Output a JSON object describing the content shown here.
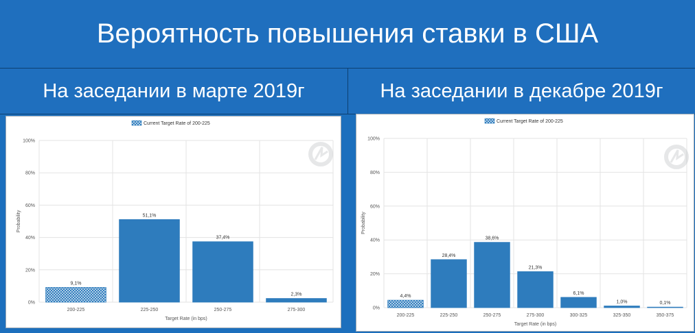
{
  "header": {
    "title": "Вероятность повышения ставки в США",
    "left_subtitle": "На заседании в марте 2019г",
    "right_subtitle": "На заседании в декабре 2019г"
  },
  "colors": {
    "background": "#1f6fbe",
    "bar": "#2e7cbd",
    "current_bar_pattern": "#2e7cbd",
    "grid": "#e3e3e3",
    "axis_text": "#555555"
  },
  "chart_data": [
    {
      "type": "bar",
      "legend": "Current Target Rate of 200-225",
      "legend_position": "top",
      "categories": [
        "200-225",
        "225-250",
        "250-275",
        "275-300"
      ],
      "values": [
        9.1,
        51.1,
        37.4,
        2.3
      ],
      "value_labels": [
        "9,1%",
        "51,1%",
        "37,4%",
        "2,3%"
      ],
      "current_index": 0,
      "xlabel": "Target Rate (in bps)",
      "ylabel": "Probability",
      "ylim": [
        0,
        100
      ],
      "yticks": [
        "0%",
        "20%",
        "40%",
        "60%",
        "80%",
        "100%"
      ],
      "grid": true
    },
    {
      "type": "bar",
      "legend": "Current Target Rate of 200-225",
      "legend_position": "top",
      "categories": [
        "200-225",
        "225-250",
        "250-275",
        "275-300",
        "300-325",
        "325-350",
        "350-375"
      ],
      "values": [
        4.4,
        28.4,
        38.6,
        21.3,
        6.1,
        1.0,
        0.1
      ],
      "value_labels": [
        "4,4%",
        "28,4%",
        "38,6%",
        "21,3%",
        "6,1%",
        "1,0%",
        "0,1%"
      ],
      "current_index": 0,
      "xlabel": "Target Rate (in bps)",
      "ylabel": "Probability",
      "ylim": [
        0,
        100
      ],
      "yticks": [
        "0%",
        "20%",
        "40%",
        "60%",
        "80%",
        "100%"
      ],
      "grid": true
    }
  ]
}
